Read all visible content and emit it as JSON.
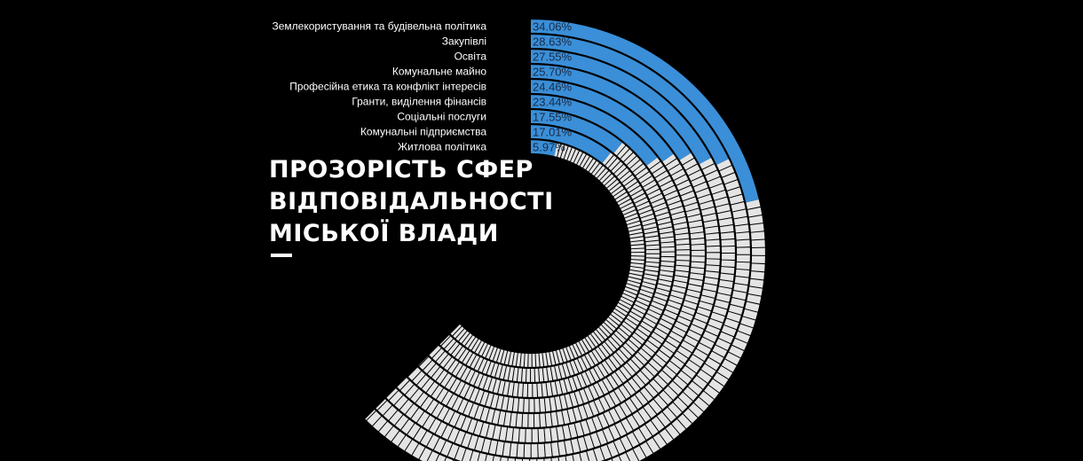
{
  "title_lines": [
    "ПРОЗОРІСТЬ СФЕР",
    "ВІДПОВІДАЛЬНОСТІ",
    "МІСЬКОЇ ВЛАДИ"
  ],
  "colors": {
    "background": "#000000",
    "filled": "#3a8fd8",
    "empty": "#e4e4e4",
    "text": "#ffffff",
    "percent_text": "#1b2a44"
  },
  "chart_data": {
    "type": "radial-bar",
    "unit": "%",
    "max": 100,
    "categories": [
      "Землекористування та будівельна політика",
      "Закупівлі",
      "Освіта",
      "Комунальне майно",
      "Професійна етика та конфлікт інтересів",
      "Гранти, виділення фінансів",
      "Соціальні послуги",
      "Комунальні підприємства",
      "Житлова політика"
    ],
    "values": [
      34.06,
      28.63,
      27.55,
      25.7,
      24.46,
      23.44,
      17.55,
      17.01,
      5.97
    ],
    "labels": [
      "34.06%",
      "28.63%",
      "27.55%",
      "25.70%",
      "24.46%",
      "23.44%",
      "17.55%",
      "17.01%",
      "5.97%"
    ]
  }
}
